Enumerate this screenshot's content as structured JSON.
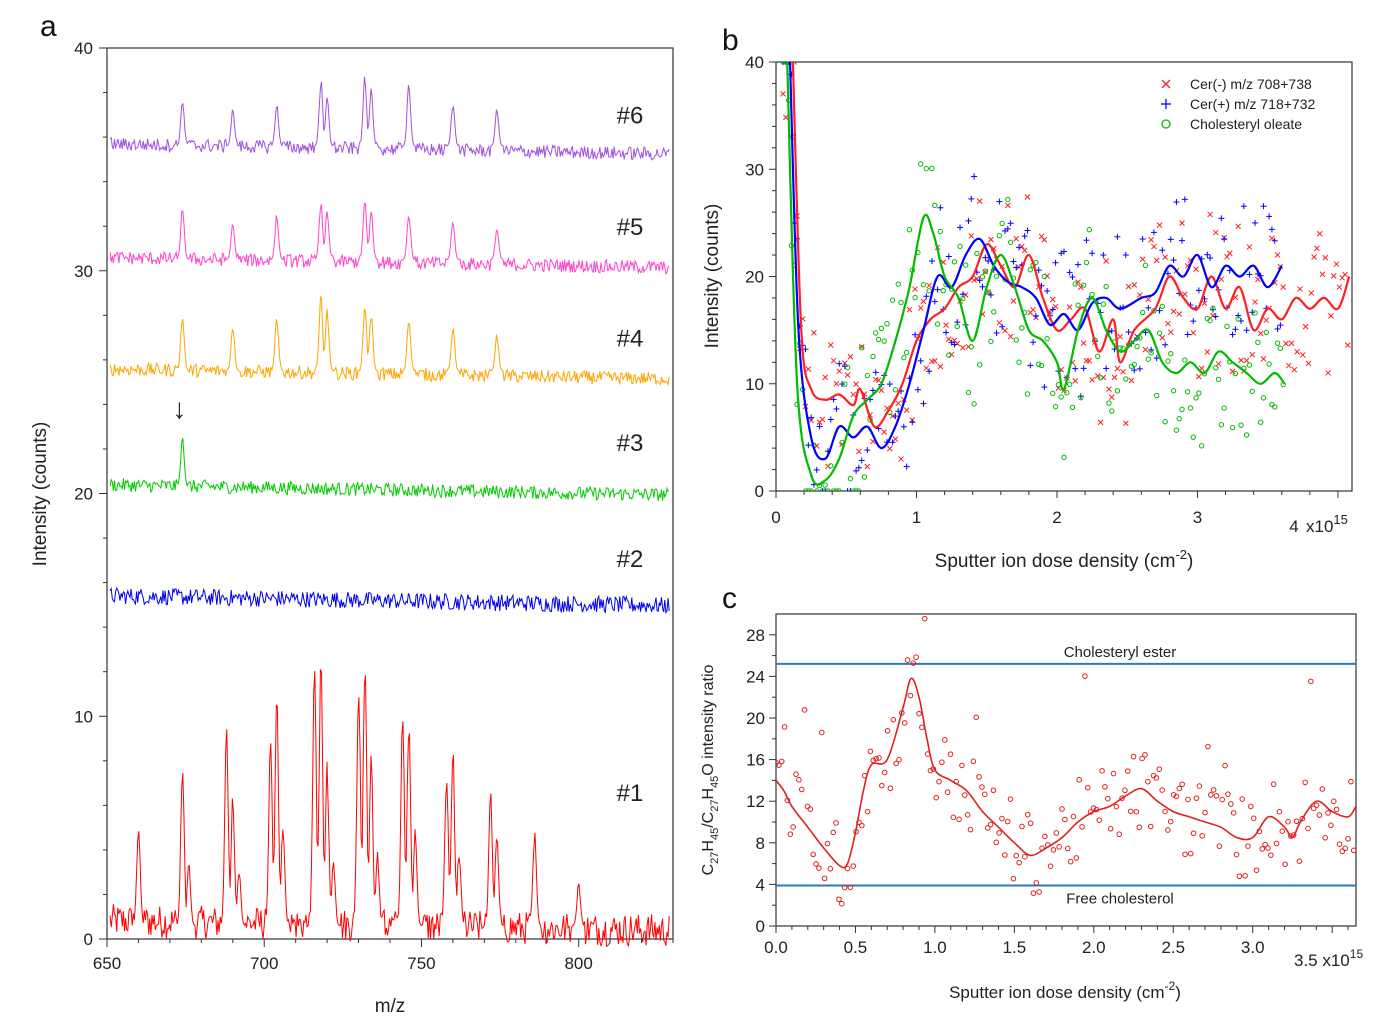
{
  "chart_data": [
    {
      "panel": "a",
      "type": "line",
      "xlabel": "m/z",
      "ylabel": "Intensity (counts)",
      "xlim": [
        650,
        830
      ],
      "ylim": [
        0,
        40
      ],
      "xticks": [
        650,
        700,
        750,
        800
      ],
      "yticks": [
        0,
        10,
        20,
        30,
        40
      ],
      "annotation": "↓",
      "annotation_x": 673,
      "annotation_y": 23.4,
      "series": [
        {
          "name": "#1",
          "color": "#ff0000",
          "baseline": 0.6,
          "label_y": 6.2,
          "peaks": [
            [
              660,
              5.4
            ],
            [
              674,
              8.0
            ],
            [
              676,
              3.5
            ],
            [
              688,
              9.8
            ],
            [
              690,
              6.8
            ],
            [
              692,
              3.2
            ],
            [
              702,
              9.2
            ],
            [
              704,
              11.3
            ],
            [
              706,
              5.5
            ],
            [
              716,
              12.8
            ],
            [
              718,
              13.3
            ],
            [
              720,
              8.0
            ],
            [
              722,
              3.8
            ],
            [
              730,
              12.0
            ],
            [
              732,
              13.6
            ],
            [
              734,
              8.5
            ],
            [
              736,
              4.0
            ],
            [
              744,
              10.3
            ],
            [
              746,
              10.8
            ],
            [
              748,
              5.0
            ],
            [
              758,
              8.0
            ],
            [
              760,
              9.0
            ],
            [
              762,
              4.2
            ],
            [
              772,
              7.1
            ],
            [
              774,
              5.0
            ],
            [
              786,
              5.2
            ],
            [
              800,
              2.6
            ]
          ]
        },
        {
          "name": "#2",
          "color": "#0000ee",
          "baseline": 15.3,
          "label_y": 16.7,
          "peaks": []
        },
        {
          "name": "#3",
          "color": "#00cc00",
          "baseline": 20.3,
          "label_y": 21.9,
          "peaks": [
            [
              674,
              22.6
            ]
          ]
        },
        {
          "name": "#4",
          "color": "#ffa500",
          "baseline": 25.5,
          "label_y": 26.6,
          "peaks": [
            [
              674,
              28.2
            ],
            [
              690,
              27.6
            ],
            [
              704,
              28.0
            ],
            [
              718,
              29.1
            ],
            [
              720,
              28.4
            ],
            [
              732,
              28.8
            ],
            [
              734,
              28.2
            ],
            [
              746,
              28.0
            ],
            [
              760,
              27.6
            ],
            [
              774,
              27.2
            ]
          ]
        },
        {
          "name": "#5",
          "color": "#ff44cc",
          "baseline": 30.5,
          "label_y": 31.6,
          "peaks": [
            [
              674,
              32.9
            ],
            [
              690,
              32.2
            ],
            [
              704,
              32.6
            ],
            [
              718,
              33.3
            ],
            [
              720,
              32.8
            ],
            [
              732,
              33.3
            ],
            [
              734,
              32.8
            ],
            [
              746,
              32.7
            ],
            [
              760,
              32.3
            ],
            [
              774,
              32.0
            ]
          ]
        },
        {
          "name": "#6",
          "color": "#a050e0",
          "baseline": 35.6,
          "label_y": 36.6,
          "peaks": [
            [
              674,
              37.8
            ],
            [
              690,
              37.3
            ],
            [
              704,
              37.6
            ],
            [
              718,
              38.7
            ],
            [
              720,
              37.9
            ],
            [
              732,
              38.9
            ],
            [
              734,
              38.2
            ],
            [
              746,
              38.6
            ],
            [
              760,
              37.6
            ],
            [
              774,
              37.3
            ]
          ]
        }
      ]
    },
    {
      "panel": "b",
      "type": "scatter",
      "xlabel": "Sputter ion dose density (cm",
      "xlabel_sup": "-2",
      "xlabel_end": ")",
      "ylabel": "Intensity (counts)",
      "xlim": [
        0,
        4.1
      ],
      "ylim": [
        0,
        40
      ],
      "xticks": [
        0,
        1,
        2,
        3,
        4
      ],
      "yticks": [
        0,
        10,
        20,
        30,
        40
      ],
      "x_multiplier": "x10",
      "x_multiplier_exp": "15",
      "series": [
        {
          "name": "Cer(-) m/z 708+738",
          "color": "#ff2020",
          "marker": "x",
          "smooth": [
            [
              0.12,
              40
            ],
            [
              0.18,
              15
            ],
            [
              0.25,
              9.5
            ],
            [
              0.35,
              8.5
            ],
            [
              0.45,
              9
            ],
            [
              0.55,
              8
            ],
            [
              0.6,
              9.5
            ],
            [
              0.7,
              6
            ],
            [
              0.8,
              7.5
            ],
            [
              0.9,
              10
            ],
            [
              1.0,
              14
            ],
            [
              1.1,
              16
            ],
            [
              1.2,
              17
            ],
            [
              1.3,
              19
            ],
            [
              1.4,
              20
            ],
            [
              1.5,
              23
            ],
            [
              1.6,
              21
            ],
            [
              1.7,
              19
            ],
            [
              1.8,
              22
            ],
            [
              1.9,
              18
            ],
            [
              2.0,
              15
            ],
            [
              2.1,
              16
            ],
            [
              2.2,
              17
            ],
            [
              2.3,
              13
            ],
            [
              2.4,
              16
            ],
            [
              2.45,
              12
            ],
            [
              2.55,
              15
            ],
            [
              2.7,
              17
            ],
            [
              2.8,
              20
            ],
            [
              2.9,
              18
            ],
            [
              3.0,
              17
            ],
            [
              3.1,
              20
            ],
            [
              3.2,
              17
            ],
            [
              3.3,
              19
            ],
            [
              3.4,
              15
            ],
            [
              3.5,
              17
            ],
            [
              3.6,
              16
            ],
            [
              3.7,
              18
            ],
            [
              3.8,
              17
            ],
            [
              3.9,
              18
            ],
            [
              4.0,
              17
            ],
            [
              4.08,
              20
            ]
          ]
        },
        {
          "name": "Cer(+) m/z 718+732",
          "color": "#0000ff",
          "marker": "+",
          "smooth": [
            [
              0.1,
              40
            ],
            [
              0.16,
              15
            ],
            [
              0.25,
              5
            ],
            [
              0.35,
              3
            ],
            [
              0.45,
              6
            ],
            [
              0.55,
              5
            ],
            [
              0.65,
              6
            ],
            [
              0.75,
              4
            ],
            [
              0.85,
              6
            ],
            [
              0.95,
              10
            ],
            [
              1.05,
              15
            ],
            [
              1.15,
              20
            ],
            [
              1.25,
              19
            ],
            [
              1.35,
              22
            ],
            [
              1.45,
              23.5
            ],
            [
              1.55,
              21
            ],
            [
              1.65,
              19.5
            ],
            [
              1.75,
              19
            ],
            [
              1.85,
              18
            ],
            [
              1.95,
              15.5
            ],
            [
              2.05,
              16.5
            ],
            [
              2.15,
              15
            ],
            [
              2.25,
              17.5
            ],
            [
              2.35,
              18
            ],
            [
              2.45,
              17
            ],
            [
              2.6,
              18
            ],
            [
              2.7,
              18.5
            ],
            [
              2.8,
              21
            ],
            [
              2.9,
              20
            ],
            [
              3.0,
              22
            ],
            [
              3.1,
              19
            ],
            [
              3.2,
              21
            ],
            [
              3.3,
              20
            ],
            [
              3.4,
              21
            ],
            [
              3.5,
              19
            ],
            [
              3.6,
              21
            ]
          ]
        },
        {
          "name": "Cholesteryl oleate",
          "color": "#00bb00",
          "marker": "o",
          "smooth": [
            [
              0.08,
              40
            ],
            [
              0.15,
              10
            ],
            [
              0.25,
              1.5
            ],
            [
              0.35,
              1
            ],
            [
              0.45,
              3
            ],
            [
              0.55,
              7
            ],
            [
              0.65,
              8.5
            ],
            [
              0.75,
              10
            ],
            [
              0.85,
              14
            ],
            [
              0.95,
              19
            ],
            [
              1.05,
              25.5
            ],
            [
              1.12,
              24
            ],
            [
              1.2,
              20
            ],
            [
              1.3,
              18
            ],
            [
              1.4,
              14
            ],
            [
              1.5,
              19
            ],
            [
              1.6,
              22
            ],
            [
              1.7,
              19
            ],
            [
              1.8,
              15
            ],
            [
              1.9,
              14
            ],
            [
              2.0,
              12
            ],
            [
              2.05,
              9.5
            ],
            [
              2.15,
              15
            ],
            [
              2.25,
              18
            ],
            [
              2.35,
              15
            ],
            [
              2.45,
              13
            ],
            [
              2.55,
              14
            ],
            [
              2.65,
              15
            ],
            [
              2.75,
              12
            ],
            [
              2.85,
              11
            ],
            [
              2.95,
              12
            ],
            [
              3.05,
              11
            ],
            [
              3.15,
              13
            ],
            [
              3.25,
              12
            ],
            [
              3.35,
              11
            ],
            [
              3.45,
              10
            ],
            [
              3.55,
              11
            ],
            [
              3.62,
              10
            ]
          ]
        }
      ]
    },
    {
      "panel": "c",
      "type": "scatter",
      "ylabel": "C27H45/C27H45O intensity ratio",
      "xlabel": "Sputter ion dose density (cm",
      "xlabel_sup": "-2",
      "xlabel_end": ")",
      "xlim": [
        0,
        3.65
      ],
      "ylim": [
        0,
        30
      ],
      "xticks": [
        0.0,
        0.5,
        1.0,
        1.5,
        2.0,
        2.5,
        3.0
      ],
      "xtick_labels": [
        "0.0",
        "0.5",
        "1.0",
        "1.5",
        "2.0",
        "2.5",
        "3.0"
      ],
      "yticks": [
        0,
        4,
        8,
        12,
        16,
        20,
        24,
        28
      ],
      "x_multiplier": "3.5 x10",
      "x_multiplier_exp": "15",
      "reference_lines": [
        {
          "label": "Cholesteryl ester",
          "y": 25.2,
          "color": "#2b7bb9"
        },
        {
          "label": "Free cholesterol",
          "y": 3.9,
          "color": "#2b7bb9"
        }
      ],
      "series": [
        {
          "name": "ratio",
          "color": "#e02020",
          "marker": "o",
          "smooth": [
            [
              0,
              14
            ],
            [
              0.05,
              13
            ],
            [
              0.1,
              11.5
            ],
            [
              0.2,
              9.5
            ],
            [
              0.3,
              7.5
            ],
            [
              0.4,
              5.8
            ],
            [
              0.45,
              6
            ],
            [
              0.5,
              9
            ],
            [
              0.55,
              13
            ],
            [
              0.6,
              15.5
            ],
            [
              0.7,
              16
            ],
            [
              0.8,
              21
            ],
            [
              0.85,
              23.8
            ],
            [
              0.9,
              22
            ],
            [
              0.95,
              18
            ],
            [
              1.0,
              15
            ],
            [
              1.1,
              14
            ],
            [
              1.2,
              13
            ],
            [
              1.3,
              11
            ],
            [
              1.4,
              9.5
            ],
            [
              1.5,
              8
            ],
            [
              1.6,
              6.8
            ],
            [
              1.7,
              7.5
            ],
            [
              1.8,
              8.5
            ],
            [
              1.9,
              10
            ],
            [
              2.0,
              11
            ],
            [
              2.1,
              11.5
            ],
            [
              2.2,
              12.5
            ],
            [
              2.3,
              13.2
            ],
            [
              2.4,
              12
            ],
            [
              2.5,
              11
            ],
            [
              2.6,
              10.5
            ],
            [
              2.7,
              10
            ],
            [
              2.8,
              9.5
            ],
            [
              2.9,
              8.5
            ],
            [
              3.0,
              8.5
            ],
            [
              3.1,
              10.5
            ],
            [
              3.2,
              9.5
            ],
            [
              3.25,
              8.5
            ],
            [
              3.3,
              10
            ],
            [
              3.4,
              12
            ],
            [
              3.5,
              11
            ],
            [
              3.6,
              10.5
            ],
            [
              3.65,
              11.5
            ]
          ]
        }
      ]
    }
  ],
  "panel_labels": {
    "a": "a",
    "b": "b",
    "c": "c"
  },
  "c_ylabel_parts": {
    "c1": "C",
    "s1": "27",
    "h1": "H",
    "s2": "45",
    "slash": "/C",
    "s3": "27",
    "h2": "H",
    "s4": "45",
    "o": "O intensity ratio"
  }
}
